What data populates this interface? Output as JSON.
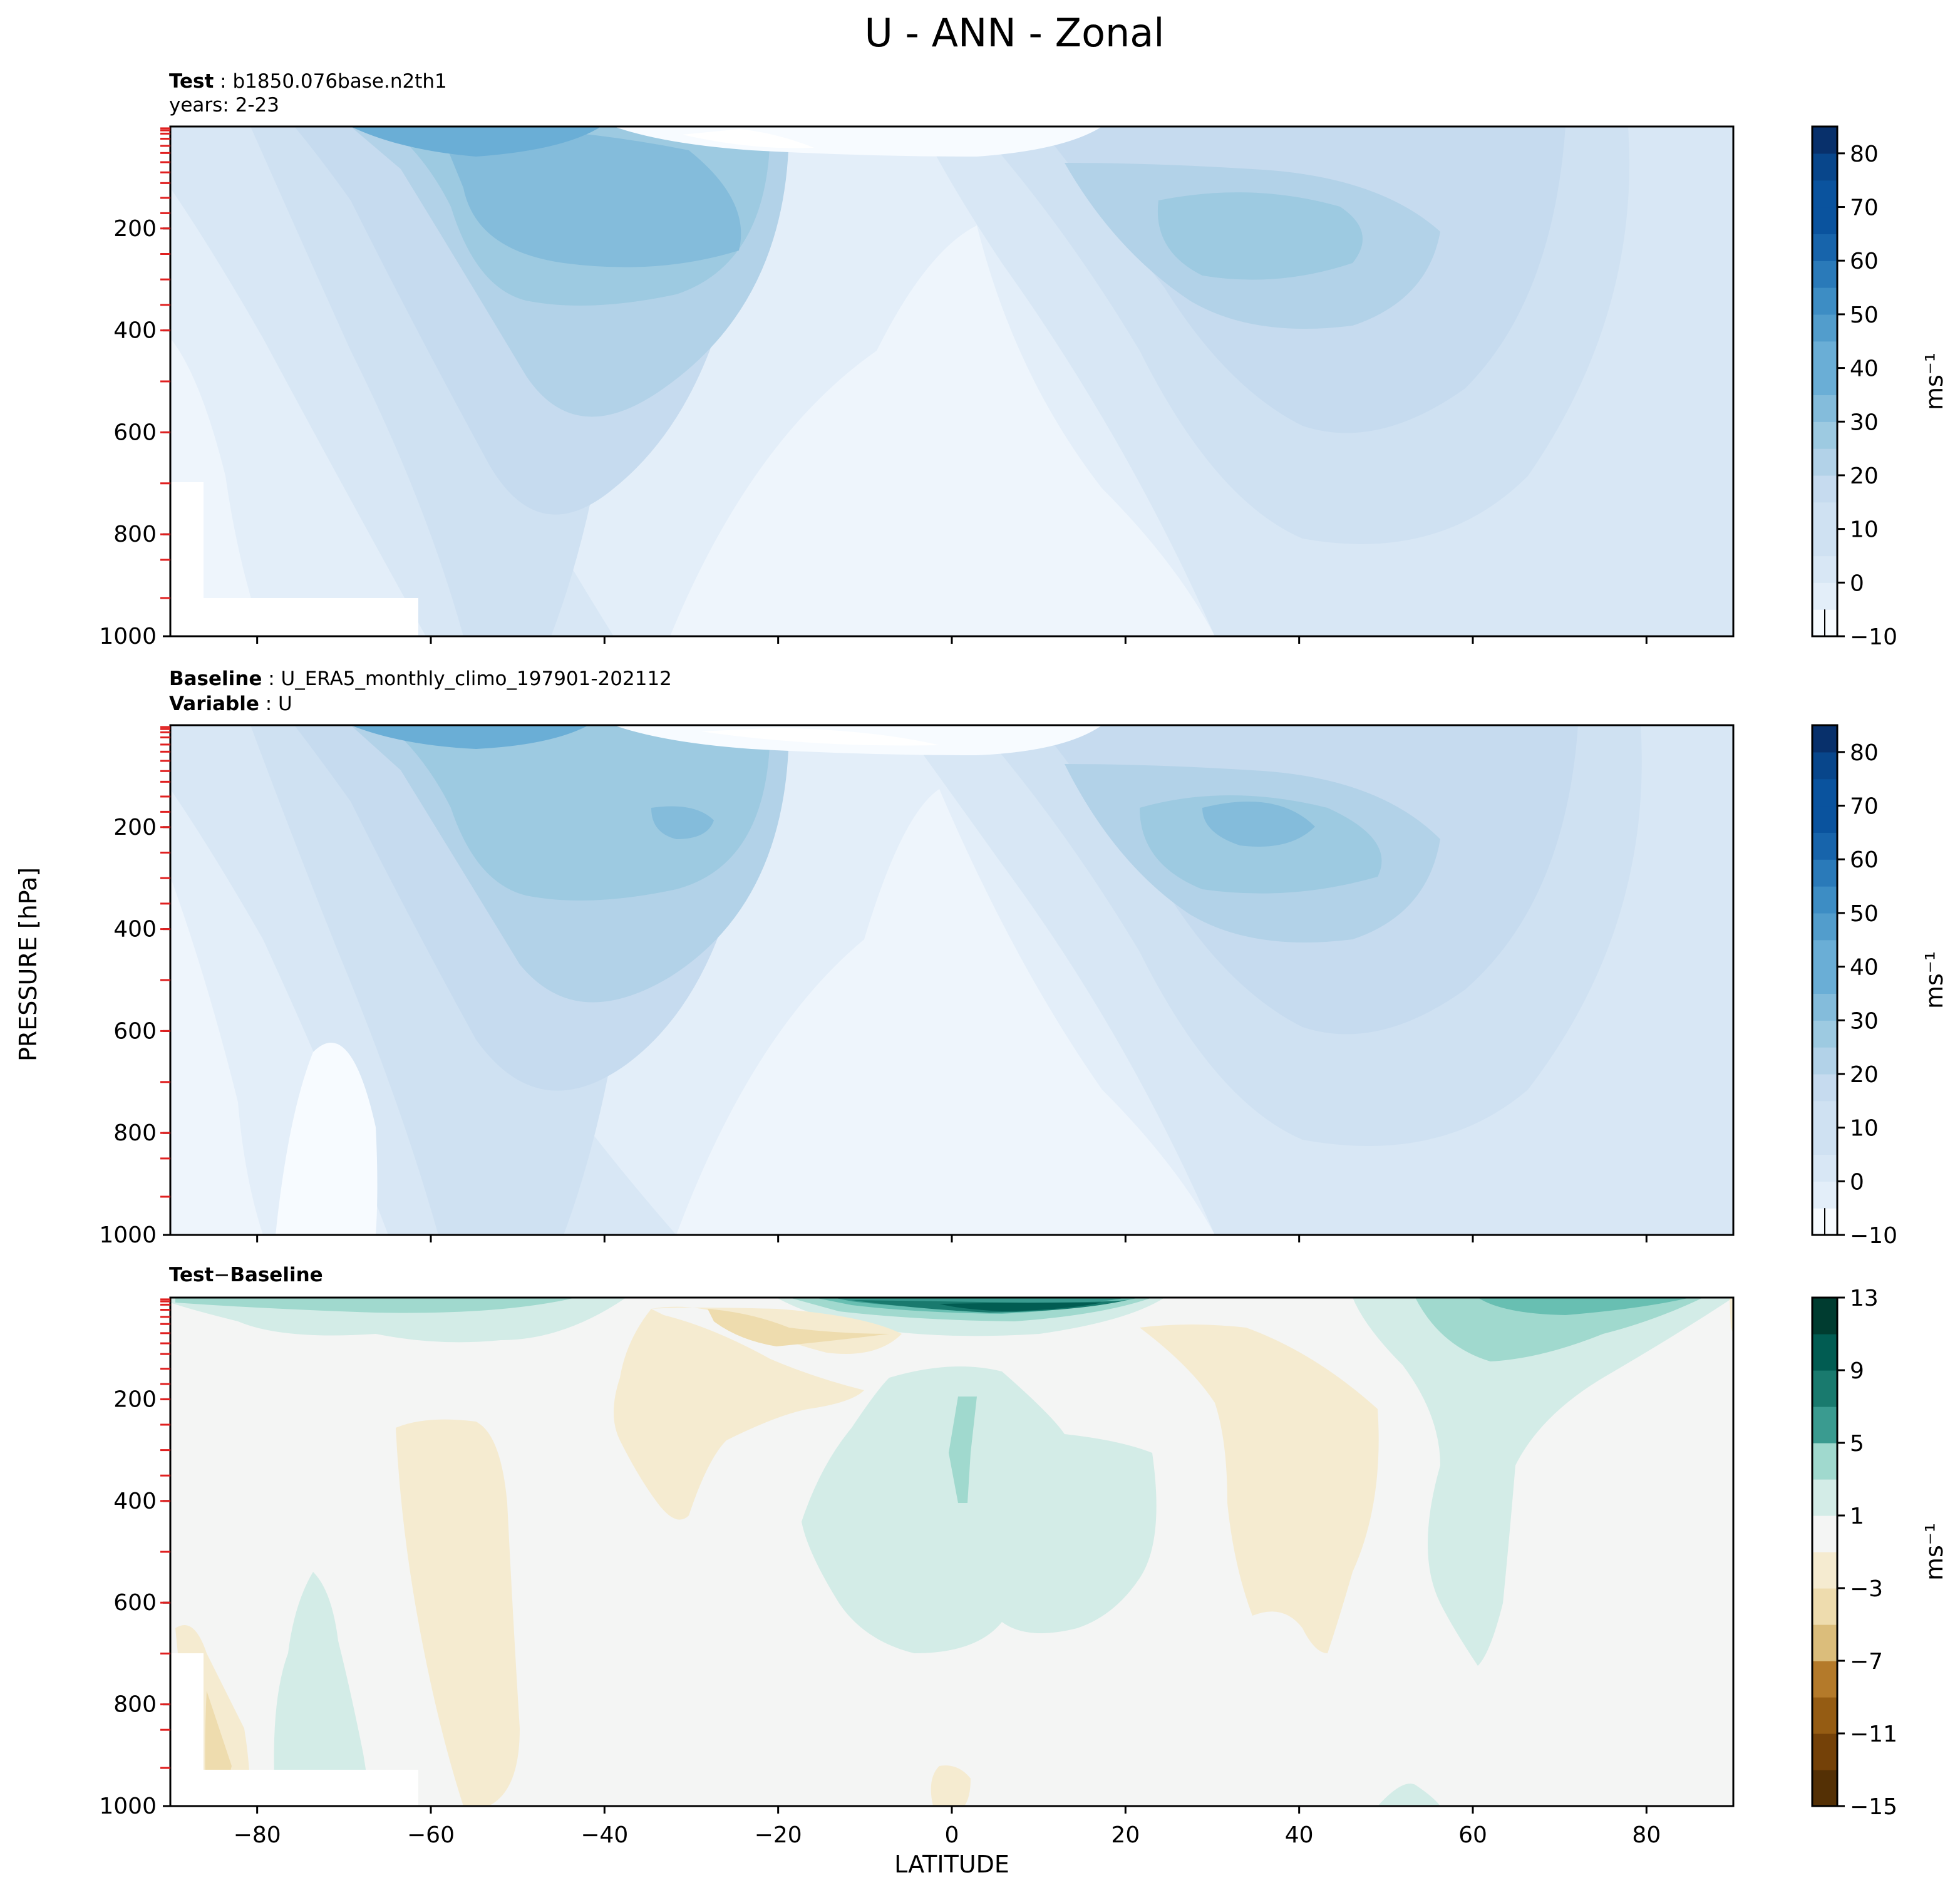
{
  "figure": {
    "title": "U - ANN - Zonal",
    "xlabel": "LATITUDE",
    "ylabel": "PRESSURE [hPa]"
  },
  "colors": {
    "blues": [
      "#f7fbff",
      "#e3eef9",
      "#d8e7f5",
      "#cfe1f2",
      "#c6dbef",
      "#b2d2e8",
      "#9dcae1",
      "#84bcdb",
      "#6aaed6",
      "#529dcc",
      "#3d8dc4",
      "#2a7ab9",
      "#1764ab",
      "#0a539e",
      "#08468b",
      "#08306b"
    ],
    "diff": [
      "#543005",
      "#744108",
      "#955c13",
      "#b47a2a",
      "#c9a058",
      "#dbbd7b",
      "#eedcae",
      "#f5ebd0",
      "#f4f5f4",
      "#d3ece7",
      "#a0d9ce",
      "#68bfb2",
      "#3a9b90",
      "#197a6e",
      "#015c52",
      "#003c30"
    ],
    "red_tick": "#e02020"
  },
  "chart_data": [
    {
      "type": "heatmap",
      "name": "test",
      "title_bold_1": "Test",
      "title_text_1": "b1850.076base.n2th1",
      "title_line_2": "years: 2-23",
      "xlim": [
        -90,
        90
      ],
      "ylim": [
        1000,
        0
      ],
      "x_ticks": [
        -80,
        -60,
        -40,
        -20,
        0,
        20,
        40,
        60,
        80
      ],
      "y_ticks": [
        200,
        400,
        600,
        800,
        1000
      ],
      "colorbar": {
        "label": "ms⁻¹",
        "levels": [
          -10,
          -5,
          0,
          5,
          10,
          15,
          20,
          25,
          30,
          35,
          40,
          45,
          50,
          55,
          60,
          65,
          70,
          75,
          80,
          85
        ],
        "tick_values": [
          -10,
          0,
          10,
          20,
          30,
          40,
          50,
          60,
          70,
          80
        ]
      },
      "features": {
        "sh_jet": {
          "lat": -45,
          "p": 230,
          "value": 33
        },
        "nh_jet": {
          "lat": 33,
          "p": 200,
          "value": 28
        },
        "strat_sh": {
          "lat": -58,
          "p": 10,
          "value": 38
        }
      }
    },
    {
      "type": "heatmap",
      "name": "baseline",
      "title_bold_1": "Baseline",
      "title_text_1": "U_ERA5_monthly_climo_197901-202112",
      "title_bold_2": "Variable",
      "title_text_2": "U",
      "xlim": [
        -90,
        90
      ],
      "ylim": [
        1000,
        0
      ],
      "x_ticks": [
        -80,
        -60,
        -40,
        -20,
        0,
        20,
        40,
        60,
        80
      ],
      "y_ticks": [
        200,
        400,
        600,
        800,
        1000
      ],
      "colorbar": {
        "label": "ms⁻¹",
        "levels": [
          -10,
          -5,
          0,
          5,
          10,
          15,
          20,
          25,
          30,
          35,
          40,
          45,
          50,
          55,
          60,
          65,
          70,
          75,
          80,
          85
        ],
        "tick_values": [
          -10,
          0,
          10,
          20,
          30,
          40,
          50,
          60,
          70,
          80
        ]
      },
      "features": {
        "sh_jet": {
          "lat": -40,
          "p": 200,
          "value": 33
        },
        "nh_jet": {
          "lat": 35,
          "p": 200,
          "value": 32
        },
        "strat_sh": {
          "lat": -58,
          "p": 10,
          "value": 36
        }
      }
    },
    {
      "type": "heatmap",
      "name": "difference",
      "title_bold_1": "Test",
      "title_text_1": "−",
      "title_bold_2": "Baseline",
      "xlim": [
        -90,
        90
      ],
      "ylim": [
        1000,
        0
      ],
      "x_ticks": [
        -80,
        -60,
        -40,
        -20,
        0,
        20,
        40,
        60,
        80
      ],
      "y_ticks": [
        200,
        400,
        600,
        800,
        1000
      ],
      "colorbar": {
        "label": "ms⁻¹",
        "levels": [
          -15,
          -13,
          -11,
          -9,
          -7,
          -5,
          -3,
          -1,
          1,
          3,
          5,
          7,
          9,
          11,
          13
        ],
        "tick_values": [
          -15,
          -11,
          -7,
          -3,
          1,
          5,
          9,
          13
        ]
      },
      "features": {
        "strat_eq": {
          "lat": 5,
          "p": 15,
          "value": 12
        },
        "nh_high": {
          "lat": 62,
          "p": 40,
          "value": 5
        }
      }
    }
  ]
}
